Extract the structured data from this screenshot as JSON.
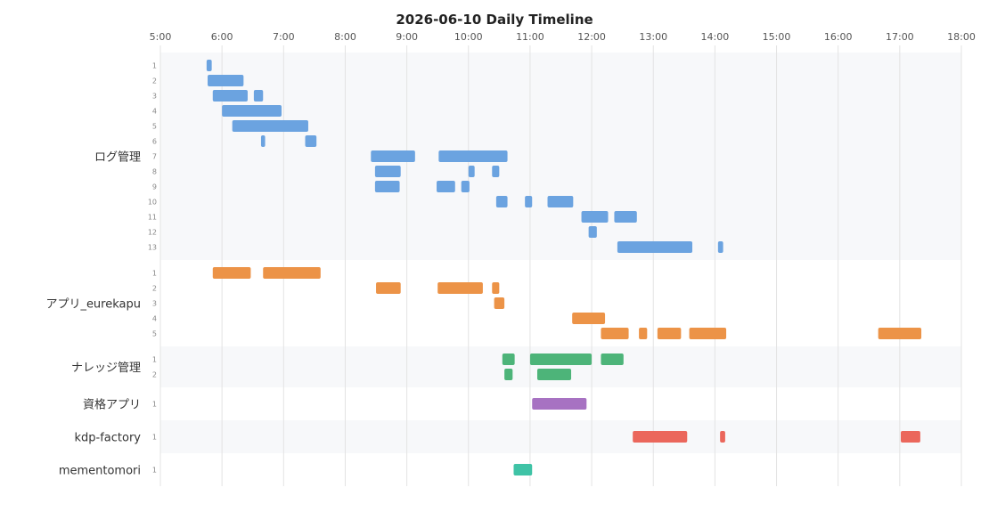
{
  "chart_data": {
    "type": "gantt",
    "title": "2026-06-10 Daily Timeline",
    "xlim": [
      "5:00",
      "18:00"
    ],
    "ticks": [
      "5:00",
      "6:00",
      "7:00",
      "8:00",
      "9:00",
      "10:00",
      "11:00",
      "12:00",
      "13:00",
      "14:00",
      "15:00",
      "16:00",
      "17:00",
      "18:00"
    ],
    "grid": true,
    "groups": [
      {
        "name": "ログ管理",
        "color": "#6ba3e0",
        "rows": [
          {
            "label": "1",
            "bars": [
              [
                "5:45",
                "5:50"
              ]
            ]
          },
          {
            "label": "2",
            "bars": [
              [
                "5:46",
                "6:21"
              ]
            ]
          },
          {
            "label": "3",
            "bars": [
              [
                "5:51",
                "6:25"
              ],
              [
                "6:31",
                "6:40"
              ]
            ]
          },
          {
            "label": "4",
            "bars": [
              [
                "6:00",
                "6:58"
              ]
            ]
          },
          {
            "label": "5",
            "bars": [
              [
                "6:10",
                "7:24"
              ]
            ]
          },
          {
            "label": "6",
            "bars": [
              [
                "6:38",
                "6:42"
              ],
              [
                "7:21",
                "7:32"
              ]
            ]
          },
          {
            "label": "7",
            "bars": [
              [
                "8:25",
                "9:08"
              ],
              [
                "9:31",
                "10:38"
              ]
            ]
          },
          {
            "label": "8",
            "bars": [
              [
                "8:29",
                "8:54"
              ],
              [
                "10:00",
                "10:06"
              ],
              [
                "10:23",
                "10:30"
              ]
            ]
          },
          {
            "label": "9",
            "bars": [
              [
                "8:29",
                "8:53"
              ],
              [
                "9:29",
                "9:47"
              ],
              [
                "9:53",
                "10:01"
              ]
            ]
          },
          {
            "label": "10",
            "bars": [
              [
                "10:27",
                "10:38"
              ],
              [
                "10:55",
                "11:02"
              ],
              [
                "11:17",
                "11:42"
              ]
            ]
          },
          {
            "label": "11",
            "bars": [
              [
                "11:50",
                "12:16"
              ],
              [
                "12:22",
                "12:44"
              ]
            ]
          },
          {
            "label": "12",
            "bars": [
              [
                "11:57",
                "12:05"
              ]
            ]
          },
          {
            "label": "13",
            "bars": [
              [
                "12:25",
                "13:38"
              ],
              [
                "14:03",
                "14:08"
              ]
            ]
          }
        ]
      },
      {
        "name": "アプリ_eurekapu",
        "color": "#ec9347",
        "rows": [
          {
            "label": "1",
            "bars": [
              [
                "5:51",
                "6:28"
              ],
              [
                "6:40",
                "7:36"
              ]
            ]
          },
          {
            "label": "2",
            "bars": [
              [
                "8:30",
                "8:54"
              ],
              [
                "9:30",
                "10:14"
              ],
              [
                "10:23",
                "10:30"
              ]
            ]
          },
          {
            "label": "3",
            "bars": [
              [
                "10:25",
                "10:35"
              ]
            ]
          },
          {
            "label": "4",
            "bars": [
              [
                "11:41",
                "12:13"
              ]
            ]
          },
          {
            "label": "5",
            "bars": [
              [
                "12:09",
                "12:36"
              ],
              [
                "12:46",
                "12:54"
              ],
              [
                "13:04",
                "13:27"
              ],
              [
                "13:35",
                "14:11"
              ],
              [
                "16:39",
                "17:21"
              ]
            ]
          }
        ]
      },
      {
        "name": "ナレッジ管理",
        "color": "#4db479",
        "rows": [
          {
            "label": "1",
            "bars": [
              [
                "10:33",
                "10:45"
              ],
              [
                "11:00",
                "12:00"
              ],
              [
                "12:09",
                "12:31"
              ]
            ]
          },
          {
            "label": "2",
            "bars": [
              [
                "10:35",
                "10:43"
              ],
              [
                "11:07",
                "11:40"
              ]
            ]
          }
        ]
      },
      {
        "name": "資格アプリ",
        "color": "#a772c2",
        "rows": [
          {
            "label": "1",
            "bars": [
              [
                "11:02",
                "11:55"
              ]
            ]
          }
        ]
      },
      {
        "name": "kdp-factory",
        "color": "#eb675c",
        "rows": [
          {
            "label": "1",
            "bars": [
              [
                "12:40",
                "13:33"
              ],
              [
                "14:05",
                "14:10"
              ],
              [
                "17:01",
                "17:20"
              ]
            ]
          }
        ]
      },
      {
        "name": "mementomori",
        "color": "#3fc3a6",
        "rows": [
          {
            "label": "1",
            "bars": [
              [
                "10:44",
                "11:02"
              ]
            ]
          }
        ]
      }
    ]
  }
}
